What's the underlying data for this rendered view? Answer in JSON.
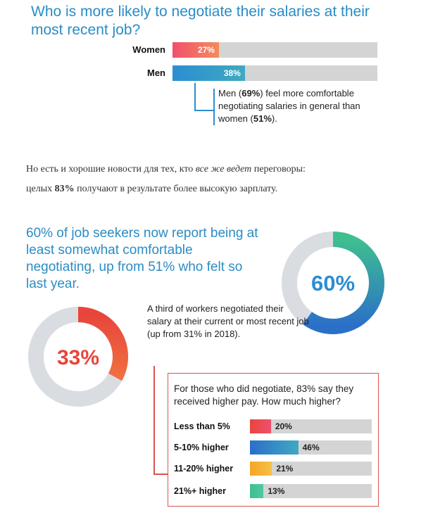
{
  "section1": {
    "title": "Who is more likely to negotiate their salaries at their most recent job?",
    "note": {
      "p1": "Men (",
      "b1": "69%",
      "p2": ") feel more comfortable negotiating salaries in general than women (",
      "b2": "51%",
      "p3": ")."
    }
  },
  "russian": {
    "line1_a": "Но есть и хорошие новости для тех, кто",
    "line1_em": "все же ведет",
    "line1_b": "переговоры:",
    "line2_a": "целых",
    "line2_pct": "83%",
    "line2_b": "получают в результате более высокую зарплату."
  },
  "section2": {
    "title": "60% of job seekers now report being at least somewhat comfortable negotiating, up from 51% who felt so last year.",
    "donut_text": "60%",
    "donut_color": "#3fbf8f"
  },
  "section3": {
    "donut_text": "33%",
    "donut_color": "#e8453c",
    "note": "A third of workers negotiated their salary at their current or most recent job (up from 31% in 2018).",
    "box_title": "For those who did negotiate, 83% say they received higher pay. How much higher?"
  },
  "chart_data": [
    {
      "type": "bar",
      "title": "Who is more likely to negotiate their salaries at their most recent job?",
      "categories": [
        "Women",
        "Men"
      ],
      "values": [
        27,
        38
      ],
      "value_labels": [
        "27%",
        "38%"
      ],
      "ylim": [
        0,
        100
      ],
      "colors": [
        "#f0506e",
        "#2b8ed1"
      ]
    },
    {
      "type": "pie",
      "title": "60% of job seekers comfortable negotiating",
      "values": [
        60,
        40
      ],
      "labels": [
        "60%",
        ""
      ]
    },
    {
      "type": "pie",
      "title": "A third of workers negotiated their salary",
      "values": [
        33,
        67
      ],
      "labels": [
        "33%",
        ""
      ]
    },
    {
      "type": "bar",
      "title": "For those who did negotiate, 83% say they received higher pay. How much higher?",
      "categories": [
        "Less than 5%",
        "5-10% higher",
        "11-20% higher",
        "21%+ higher"
      ],
      "values": [
        20,
        46,
        21,
        13
      ],
      "value_labels": [
        "20%",
        "46%",
        "21%",
        "13%"
      ],
      "ylim": [
        0,
        100
      ],
      "colors": [
        "#e8453c",
        "#2b8ed1",
        "#f5a623",
        "#3fbf8f"
      ]
    }
  ]
}
